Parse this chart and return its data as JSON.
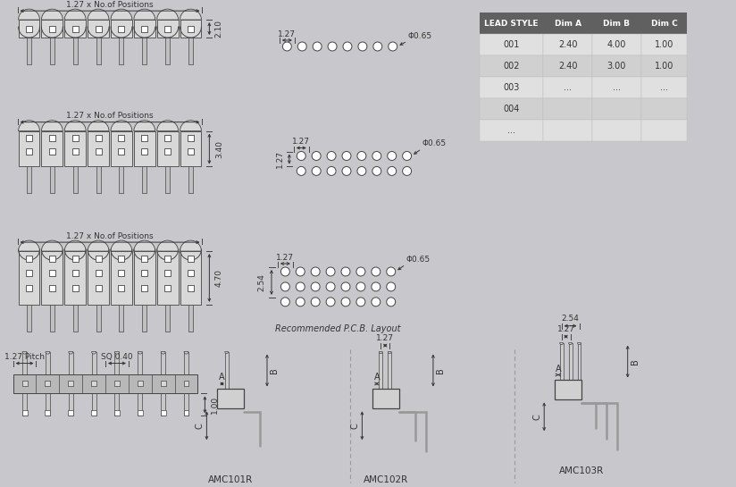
{
  "bg_color": "#c8c8cc",
  "bg_gradient_top": "#d8d8dc",
  "bg_gradient_bot": "#b8b8bc",
  "line_color": "#444444",
  "dark_text": "#333333",
  "table_header_bg": "#606060",
  "table_header_text": "#ffffff",
  "table_row1_bg": "#e0e0e0",
  "table_row2_bg": "#d0d0d0",
  "table_data": [
    [
      "LEAD STYLE",
      "Dim A",
      "Dim B",
      "Dim C"
    ],
    [
      "001",
      "2.40",
      "4.00",
      "1.00"
    ],
    [
      "002",
      "2.40",
      "3.00",
      "1.00"
    ],
    [
      "003",
      "...",
      "...",
      "..."
    ],
    [
      "004",
      "",
      "",
      ""
    ],
    [
      "...",
      "",
      "",
      ""
    ]
  ],
  "connector_color": "#d8d8d8",
  "connector_outline": "#444444",
  "pin_color": "#b0b0b0",
  "label_fontsize": 6.5,
  "dim_fontsize": 6.5
}
